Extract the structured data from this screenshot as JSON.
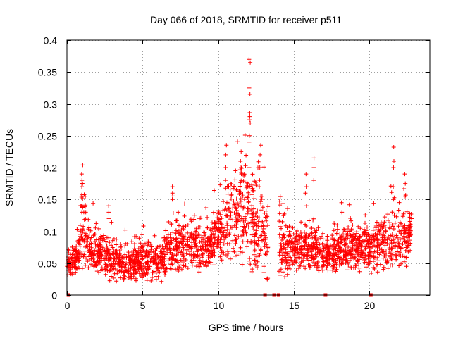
{
  "chart_data": {
    "type": "scatter",
    "title": "Day 066 of 2018, SRMTID for receiver p511",
    "xlabel": "GPS time / hours",
    "ylabel": "SRMTID / TECUs",
    "xlim": [
      0,
      24
    ],
    "ylim": [
      0,
      0.4
    ],
    "x_ticks": [
      0,
      5,
      10,
      15,
      20
    ],
    "y_ticks": [
      0,
      0.05,
      0.1,
      0.15,
      0.2,
      0.25,
      0.3,
      0.35,
      0.4
    ],
    "x_tick_labels": [
      "0",
      "5",
      "10",
      "15",
      "20"
    ],
    "y_tick_labels": [
      "0",
      "0.05",
      "0.1",
      "0.15",
      "0.2",
      "0.25",
      "0.3",
      "0.35",
      "0.4"
    ],
    "grid": true,
    "marker": "plus",
    "series_color": "#ff0000",
    "zero_markers_x": [
      0.1,
      13.1,
      13.7,
      14.0,
      17.1,
      20.1
    ],
    "envelope": {
      "segments": [
        {
          "x_start": 0.0,
          "x_end": 13.3,
          "gap_after": true
        },
        {
          "x_start": 14.0,
          "x_end": 15.1,
          "gap_after": false
        },
        {
          "x_start": 15.1,
          "x_end": 17.0,
          "gap_after": true
        },
        {
          "x_start": 17.1,
          "x_end": 22.8,
          "gap_after": false
        }
      ],
      "profile": [
        {
          "x": 0.0,
          "median": 0.052,
          "spread": 0.015
        },
        {
          "x": 0.8,
          "median": 0.058,
          "spread": 0.02
        },
        {
          "x": 1.0,
          "median": 0.12,
          "spread": 0.06
        },
        {
          "x": 1.5,
          "median": 0.07,
          "spread": 0.025
        },
        {
          "x": 3.0,
          "median": 0.06,
          "spread": 0.025
        },
        {
          "x": 4.0,
          "median": 0.045,
          "spread": 0.018
        },
        {
          "x": 5.0,
          "median": 0.055,
          "spread": 0.022
        },
        {
          "x": 6.0,
          "median": 0.05,
          "spread": 0.02
        },
        {
          "x": 7.0,
          "median": 0.075,
          "spread": 0.03
        },
        {
          "x": 8.0,
          "median": 0.075,
          "spread": 0.025
        },
        {
          "x": 9.0,
          "median": 0.07,
          "spread": 0.025
        },
        {
          "x": 10.0,
          "median": 0.09,
          "spread": 0.035
        },
        {
          "x": 11.0,
          "median": 0.12,
          "spread": 0.05
        },
        {
          "x": 12.0,
          "median": 0.13,
          "spread": 0.06
        },
        {
          "x": 13.0,
          "median": 0.09,
          "spread": 0.045
        },
        {
          "x": 14.0,
          "median": 0.08,
          "spread": 0.04
        },
        {
          "x": 15.0,
          "median": 0.07,
          "spread": 0.02
        },
        {
          "x": 16.0,
          "median": 0.075,
          "spread": 0.03
        },
        {
          "x": 17.0,
          "median": 0.06,
          "spread": 0.02
        },
        {
          "x": 18.0,
          "median": 0.07,
          "spread": 0.025
        },
        {
          "x": 19.0,
          "median": 0.075,
          "spread": 0.025
        },
        {
          "x": 20.0,
          "median": 0.07,
          "spread": 0.025
        },
        {
          "x": 21.0,
          "median": 0.08,
          "spread": 0.03
        },
        {
          "x": 22.0,
          "median": 0.085,
          "spread": 0.03
        },
        {
          "x": 22.8,
          "median": 0.095,
          "spread": 0.03
        }
      ],
      "peaks": [
        {
          "x": 1.0,
          "values": [
            0.19,
            0.18,
            0.17,
            0.14,
            0.13
          ]
        },
        {
          "x": 2.8,
          "values": [
            0.14,
            0.13,
            0.12
          ]
        },
        {
          "x": 7.0,
          "values": [
            0.17,
            0.16,
            0.15
          ]
        },
        {
          "x": 10.5,
          "values": [
            0.235,
            0.22,
            0.2,
            0.18
          ]
        },
        {
          "x": 11.5,
          "values": [
            0.225,
            0.21,
            0.2,
            0.19
          ]
        },
        {
          "x": 12.1,
          "values": [
            0.37,
            0.365,
            0.325,
            0.315,
            0.28,
            0.275,
            0.27,
            0.25,
            0.24
          ]
        },
        {
          "x": 12.8,
          "values": [
            0.235,
            0.22,
            0.2,
            0.18
          ]
        },
        {
          "x": 15.8,
          "values": [
            0.19,
            0.17,
            0.16,
            0.14
          ]
        },
        {
          "x": 16.3,
          "values": [
            0.215,
            0.2,
            0.18
          ]
        },
        {
          "x": 18.2,
          "values": [
            0.145,
            0.13
          ]
        },
        {
          "x": 21.6,
          "values": [
            0.232,
            0.21,
            0.2,
            0.17,
            0.15
          ]
        },
        {
          "x": 22.4,
          "values": [
            0.19,
            0.175,
            0.155
          ]
        }
      ]
    }
  }
}
